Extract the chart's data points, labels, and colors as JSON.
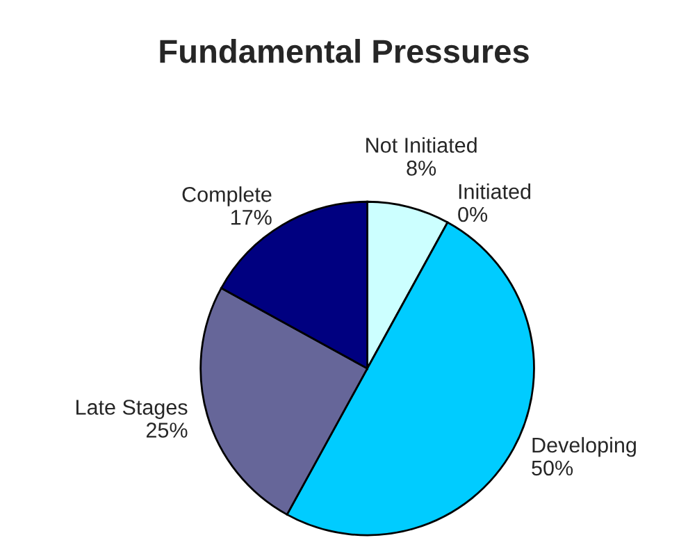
{
  "chart_data": {
    "type": "pie",
    "title": "Fundamental Pressures",
    "categories": [
      "Not Initiated",
      "Initiated",
      "Developing",
      "Late Stages",
      "Complete"
    ],
    "values": [
      8,
      0,
      50,
      25,
      17
    ],
    "value_labels": [
      "8%",
      "0%",
      "50%",
      "25%",
      "17%"
    ],
    "colors": [
      "#ccffff",
      "#993366",
      "#00ccff",
      "#666699",
      "#000080"
    ],
    "legend": false
  }
}
